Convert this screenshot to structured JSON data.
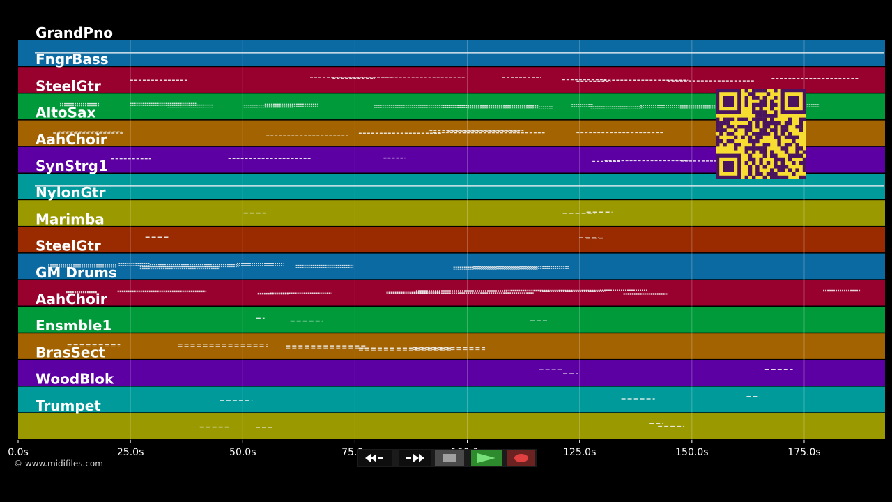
{
  "app": {
    "copyright": "© www.midifiles.com"
  },
  "timeline": {
    "ticks": [
      "0.0s",
      "25.0s",
      "50.0s",
      "75.0s",
      "100.0s",
      "125.0s",
      "150.0s",
      "175.0s"
    ],
    "tick_values": [
      0,
      25,
      50,
      75,
      100,
      125,
      150,
      175
    ],
    "range_seconds": [
      0,
      193
    ]
  },
  "tracks": [
    {
      "name": "GrandPno",
      "color": "#0a6aa1",
      "density": 1.0,
      "style": "line"
    },
    {
      "name": "FngrBass",
      "color": "#98002e",
      "density": 0.8,
      "style": "dash"
    },
    {
      "name": "SteelGtr",
      "color": "#009a3a",
      "density": 0.9,
      "style": "dots"
    },
    {
      "name": "AltoSax",
      "color": "#a36300",
      "density": 0.7,
      "style": "dash"
    },
    {
      "name": "AahChoir",
      "color": "#5c00a3",
      "density": 0.6,
      "style": "dash"
    },
    {
      "name": "SynStrg1",
      "color": "#009a9a",
      "density": 1.0,
      "style": "line"
    },
    {
      "name": "NylonGtr",
      "color": "#9a9a00",
      "density": 0.2,
      "style": "sparse"
    },
    {
      "name": "Marimba",
      "color": "#9a2a00",
      "density": 0.15,
      "style": "sparse"
    },
    {
      "name": "SteelGtr",
      "color": "#0a6aa1",
      "density": 0.6,
      "style": "dots"
    },
    {
      "name": "GM Drums",
      "color": "#98002e",
      "density": 0.9,
      "style": "dense"
    },
    {
      "name": "AahChoir",
      "color": "#009a3a",
      "density": 0.05,
      "style": "sparse"
    },
    {
      "name": "Ensmble1",
      "color": "#a36300",
      "density": 0.5,
      "style": "double"
    },
    {
      "name": "BrasSect",
      "color": "#5c00a3",
      "density": 0.2,
      "style": "sparse"
    },
    {
      "name": "WoodBlok",
      "color": "#009a9a",
      "density": 0.02,
      "style": "sparse"
    },
    {
      "name": "Trumpet",
      "color": "#9a9a00",
      "density": 0.3,
      "style": "sparse"
    }
  ],
  "transport": {
    "buttons": [
      {
        "id": "rewind",
        "icon": "rewind-icon"
      },
      {
        "id": "fast-forward",
        "icon": "fast-forward-icon"
      },
      {
        "id": "stop",
        "icon": "stop-icon"
      },
      {
        "id": "play",
        "icon": "play-icon"
      },
      {
        "id": "record",
        "icon": "record-icon"
      }
    ]
  },
  "qr": {
    "fg": "#4a145f",
    "bg": "#f7dd31"
  }
}
